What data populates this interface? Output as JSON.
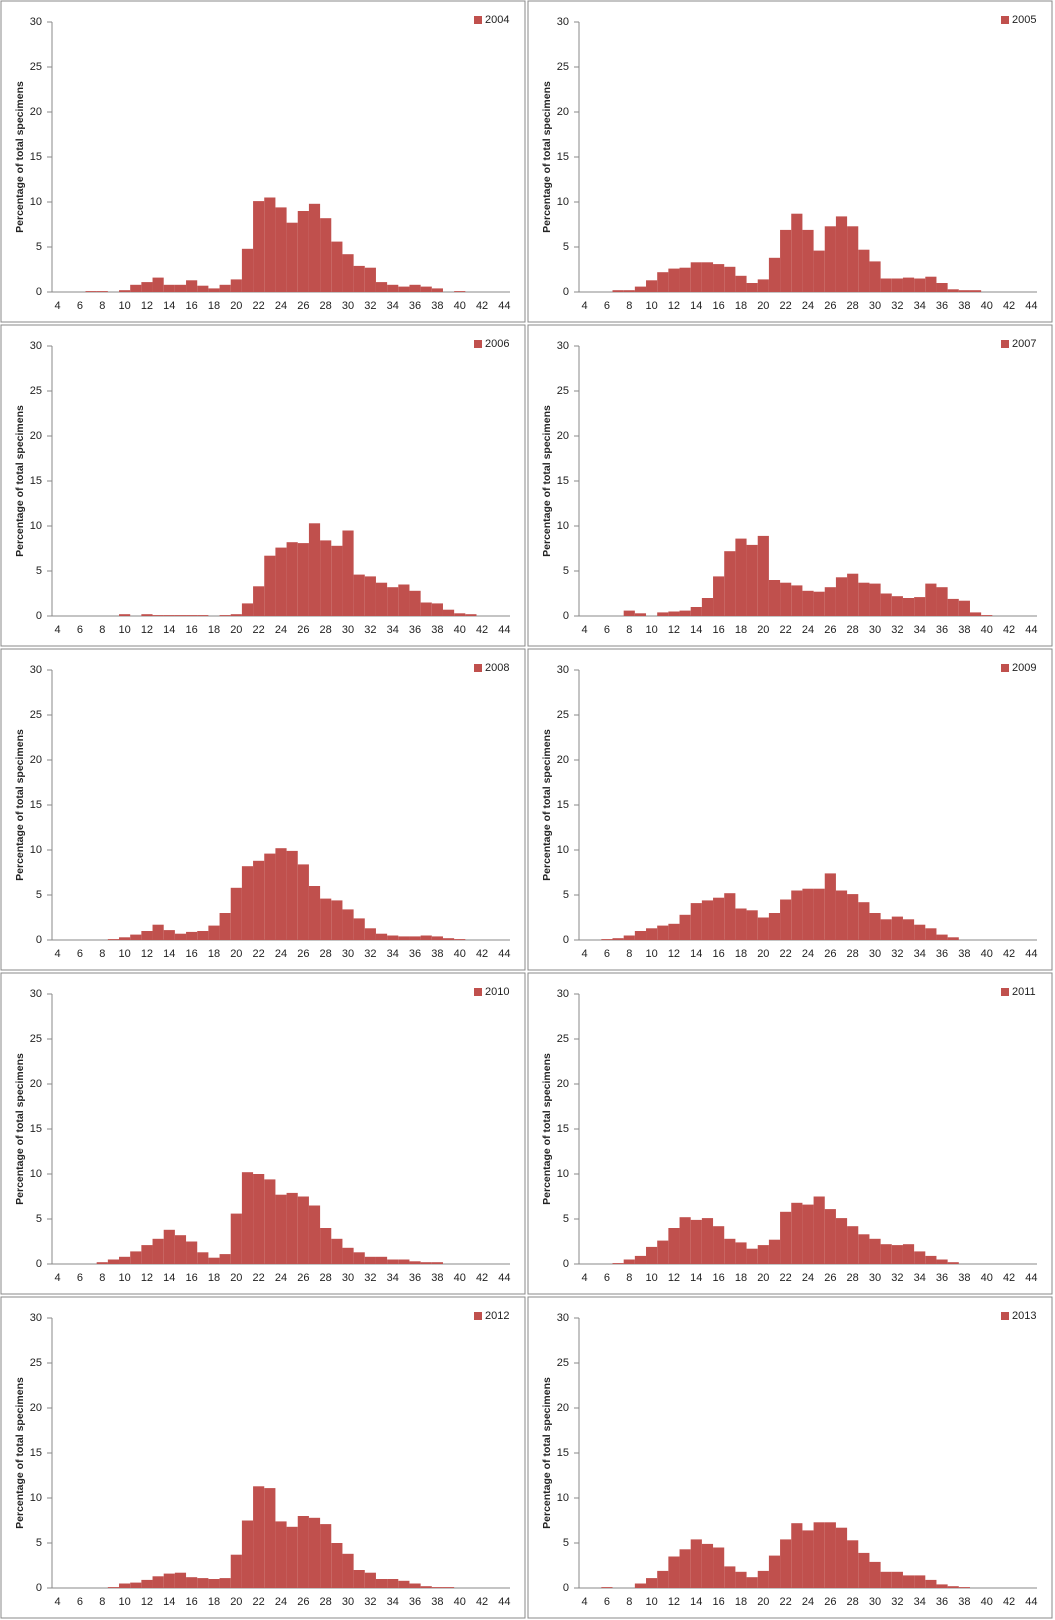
{
  "chart_data": [
    {
      "type": "bar",
      "ylabel": "Percentage of total specimens",
      "ylim": [
        0,
        30
      ],
      "yticks": [
        0,
        5,
        10,
        15,
        20,
        25,
        30
      ],
      "legend": "top-right",
      "categories": [
        "4",
        null,
        "6",
        null,
        "8",
        null,
        "10",
        null,
        "12",
        null,
        "14",
        null,
        "16",
        null,
        "18",
        null,
        "20",
        null,
        "22",
        null,
        "24",
        null,
        "26",
        null,
        "28",
        null,
        "30",
        null,
        "32",
        null,
        "34",
        null,
        "36",
        null,
        "38",
        null,
        "40",
        null,
        "42",
        null,
        "44"
      ],
      "series": [
        {
          "name": "2004",
          "color": "#c0504d",
          "values": [
            0,
            0,
            0,
            0.1,
            0.1,
            0,
            0.2,
            0.8,
            1.1,
            1.6,
            0.8,
            0.8,
            1.3,
            0.7,
            0.4,
            0.8,
            1.4,
            4.8,
            10.1,
            10.5,
            9.4,
            7.7,
            9,
            9.8,
            8.2,
            5.6,
            4.2,
            2.9,
            2.7,
            1.1,
            0.8,
            0.6,
            0.8,
            0.6,
            0.4,
            0,
            0.1,
            0,
            0,
            0,
            0
          ]
        }
      ]
    },
    {
      "type": "bar",
      "ylabel": "Percentage of total specimens",
      "ylim": [
        0,
        30
      ],
      "yticks": [
        0,
        5,
        10,
        15,
        20,
        25,
        30
      ],
      "legend": "top-right",
      "categories": [
        "4",
        null,
        "6",
        null,
        "8",
        null,
        "10",
        null,
        "12",
        null,
        "14",
        null,
        "16",
        null,
        "18",
        null,
        "20",
        null,
        "22",
        null,
        "24",
        null,
        "26",
        null,
        "28",
        null,
        "30",
        null,
        "32",
        null,
        "34",
        null,
        "36",
        null,
        "38",
        null,
        "40",
        null,
        "42",
        null,
        "44"
      ],
      "series": [
        {
          "name": "2005",
          "color": "#c0504d",
          "values": [
            0,
            0,
            0,
            0.2,
            0.2,
            0.6,
            1.3,
            2.2,
            2.6,
            2.7,
            3.3,
            3.3,
            3.1,
            2.8,
            1.8,
            1,
            1.4,
            3.8,
            6.9,
            8.7,
            6.9,
            4.6,
            7.3,
            8.4,
            7.3,
            4.7,
            3.4,
            1.5,
            1.5,
            1.6,
            1.5,
            1.7,
            1,
            0.3,
            0.2,
            0.2,
            0,
            0,
            0,
            0,
            0
          ]
        }
      ]
    },
    {
      "type": "bar",
      "ylabel": "Percentage of total specimens",
      "ylim": [
        0,
        30
      ],
      "yticks": [
        0,
        5,
        10,
        15,
        20,
        25,
        30
      ],
      "legend": "top-right",
      "categories": [
        "4",
        null,
        "6",
        null,
        "8",
        null,
        "10",
        null,
        "12",
        null,
        "14",
        null,
        "16",
        null,
        "18",
        null,
        "20",
        null,
        "22",
        null,
        "24",
        null,
        "26",
        null,
        "28",
        null,
        "30",
        null,
        "32",
        null,
        "34",
        null,
        "36",
        null,
        "38",
        null,
        "40",
        null,
        "42",
        null,
        "44"
      ],
      "series": [
        {
          "name": "2006",
          "color": "#c0504d",
          "values": [
            0,
            0,
            0,
            0,
            0,
            0,
            0.2,
            0,
            0.2,
            0.1,
            0.1,
            0.1,
            0.1,
            0.1,
            0,
            0.1,
            0.2,
            1.4,
            3.3,
            6.7,
            7.6,
            8.2,
            8.1,
            10.3,
            8.4,
            7.8,
            9.5,
            4.6,
            4.4,
            3.7,
            3.2,
            3.5,
            2.8,
            1.5,
            1.4,
            0.7,
            0.3,
            0.2,
            0,
            0,
            0
          ]
        }
      ]
    },
    {
      "type": "bar",
      "ylabel": "Percentage of total specimens",
      "ylim": [
        0,
        30
      ],
      "yticks": [
        0,
        5,
        10,
        15,
        20,
        25,
        30
      ],
      "legend": "top-right",
      "categories": [
        "4",
        null,
        "6",
        null,
        "8",
        null,
        "10",
        null,
        "12",
        null,
        "14",
        null,
        "16",
        null,
        "18",
        null,
        "20",
        null,
        "22",
        null,
        "24",
        null,
        "26",
        null,
        "28",
        null,
        "30",
        null,
        "32",
        null,
        "34",
        null,
        "36",
        null,
        "38",
        null,
        "40",
        null,
        "42",
        null,
        "44"
      ],
      "series": [
        {
          "name": "2007",
          "color": "#c0504d",
          "values": [
            0,
            0,
            0,
            0,
            0.6,
            0.3,
            0,
            0.4,
            0.5,
            0.6,
            1,
            2,
            4.4,
            7.2,
            8.6,
            7.9,
            8.9,
            4,
            3.7,
            3.4,
            2.8,
            2.7,
            3.2,
            4.3,
            4.7,
            3.7,
            3.6,
            2.5,
            2.2,
            2,
            2.1,
            3.6,
            3.2,
            1.9,
            1.7,
            0.4,
            0.1,
            0,
            0,
            0,
            0
          ]
        }
      ]
    },
    {
      "type": "bar",
      "ylabel": "Percentage of total specimens",
      "ylim": [
        0,
        30
      ],
      "yticks": [
        0,
        5,
        10,
        15,
        20,
        25,
        30
      ],
      "legend": "top-right",
      "categories": [
        "4",
        null,
        "6",
        null,
        "8",
        null,
        "10",
        null,
        "12",
        null,
        "14",
        null,
        "16",
        null,
        "18",
        null,
        "20",
        null,
        "22",
        null,
        "24",
        null,
        "26",
        null,
        "28",
        null,
        "30",
        null,
        "32",
        null,
        "34",
        null,
        "36",
        null,
        "38",
        null,
        "40",
        null,
        "42",
        null,
        "44"
      ],
      "series": [
        {
          "name": "2008",
          "color": "#c0504d",
          "values": [
            0,
            0,
            0,
            0,
            0,
            0.1,
            0.3,
            0.6,
            1,
            1.7,
            1.1,
            0.7,
            0.9,
            1,
            1.6,
            3,
            5.8,
            8.2,
            8.8,
            9.6,
            10.2,
            9.9,
            8.4,
            6,
            4.6,
            4.4,
            3.4,
            2.4,
            1.3,
            0.7,
            0.5,
            0.4,
            0.4,
            0.5,
            0.4,
            0.2,
            0.1,
            0,
            0,
            0,
            0
          ]
        }
      ]
    },
    {
      "type": "bar",
      "ylabel": "Percentage of total specimens",
      "ylim": [
        0,
        30
      ],
      "yticks": [
        0,
        5,
        10,
        15,
        20,
        25,
        30
      ],
      "legend": "top-right",
      "categories": [
        "4",
        null,
        "6",
        null,
        "8",
        null,
        "10",
        null,
        "12",
        null,
        "14",
        null,
        "16",
        null,
        "18",
        null,
        "20",
        null,
        "22",
        null,
        "24",
        null,
        "26",
        null,
        "28",
        null,
        "30",
        null,
        "32",
        null,
        "34",
        null,
        "36",
        null,
        "38",
        null,
        "40",
        null,
        "42",
        null,
        "44"
      ],
      "series": [
        {
          "name": "2009",
          "color": "#c0504d",
          "values": [
            0,
            0,
            0.1,
            0.2,
            0.5,
            1,
            1.3,
            1.6,
            1.8,
            2.8,
            4.1,
            4.4,
            4.7,
            5.2,
            3.5,
            3.3,
            2.5,
            3,
            4.5,
            5.5,
            5.7,
            5.7,
            7.4,
            5.5,
            5.1,
            4.2,
            3,
            2.3,
            2.6,
            2.3,
            1.7,
            1.3,
            0.6,
            0.3,
            0,
            0,
            0,
            0,
            0,
            0,
            0
          ]
        }
      ]
    },
    {
      "type": "bar",
      "ylabel": "Percentage of total specimens",
      "ylim": [
        0,
        30
      ],
      "yticks": [
        0,
        5,
        10,
        15,
        20,
        25,
        30
      ],
      "legend": "top-right",
      "categories": [
        "4",
        null,
        "6",
        null,
        "8",
        null,
        "10",
        null,
        "12",
        null,
        "14",
        null,
        "16",
        null,
        "18",
        null,
        "20",
        null,
        "22",
        null,
        "24",
        null,
        "26",
        null,
        "28",
        null,
        "30",
        null,
        "32",
        null,
        "34",
        null,
        "36",
        null,
        "38",
        null,
        "40",
        null,
        "42",
        null,
        "44"
      ],
      "series": [
        {
          "name": "2010",
          "color": "#c0504d",
          "values": [
            0,
            0,
            0,
            0,
            0.2,
            0.5,
            0.8,
            1.4,
            2.1,
            2.8,
            3.8,
            3.2,
            2.5,
            1.3,
            0.7,
            1.1,
            5.6,
            10.2,
            10,
            9.4,
            7.7,
            7.9,
            7.5,
            6.5,
            4,
            2.8,
            1.8,
            1.3,
            0.8,
            0.8,
            0.5,
            0.5,
            0.3,
            0.2,
            0.2,
            0,
            0,
            0,
            0,
            0,
            0
          ]
        }
      ]
    },
    {
      "type": "bar",
      "ylabel": "Percentage of total specimens",
      "ylim": [
        0,
        30
      ],
      "yticks": [
        0,
        5,
        10,
        15,
        20,
        25,
        30
      ],
      "legend": "top-right",
      "categories": [
        "4",
        null,
        "6",
        null,
        "8",
        null,
        "10",
        null,
        "12",
        null,
        "14",
        null,
        "16",
        null,
        "18",
        null,
        "20",
        null,
        "22",
        null,
        "24",
        null,
        "26",
        null,
        "28",
        null,
        "30",
        null,
        "32",
        null,
        "34",
        null,
        "36",
        null,
        "38",
        null,
        "40",
        null,
        "42",
        null,
        "44"
      ],
      "series": [
        {
          "name": "2011",
          "color": "#c0504d",
          "values": [
            0,
            0,
            0,
            0.1,
            0.5,
            0.9,
            1.9,
            2.6,
            4,
            5.2,
            4.9,
            5.1,
            4.2,
            2.8,
            2.4,
            1.7,
            2.1,
            2.7,
            5.8,
            6.8,
            6.6,
            7.5,
            6.1,
            5.1,
            4.2,
            3.3,
            2.8,
            2.2,
            2.1,
            2.2,
            1.4,
            0.9,
            0.5,
            0.2,
            0,
            0,
            0,
            0,
            0,
            0,
            0
          ]
        }
      ]
    },
    {
      "type": "bar",
      "ylabel": "Percentage of total specimens",
      "ylim": [
        0,
        30
      ],
      "yticks": [
        0,
        5,
        10,
        15,
        20,
        25,
        30
      ],
      "legend": "top-right",
      "categories": [
        "4",
        null,
        "6",
        null,
        "8",
        null,
        "10",
        null,
        "12",
        null,
        "14",
        null,
        "16",
        null,
        "18",
        null,
        "20",
        null,
        "22",
        null,
        "24",
        null,
        "26",
        null,
        "28",
        null,
        "30",
        null,
        "32",
        null,
        "34",
        null,
        "36",
        null,
        "38",
        null,
        "40",
        null,
        "42",
        null,
        "44"
      ],
      "series": [
        {
          "name": "2012",
          "color": "#c0504d",
          "values": [
            0,
            0,
            0,
            0,
            0,
            0.1,
            0.5,
            0.6,
            0.9,
            1.3,
            1.6,
            1.7,
            1.2,
            1.1,
            1,
            1.1,
            3.7,
            7.5,
            11.3,
            11.1,
            7.4,
            6.8,
            8,
            7.8,
            7.1,
            5,
            3.8,
            2,
            1.7,
            1,
            1,
            0.8,
            0.5,
            0.2,
            0.1,
            0.1,
            0,
            0,
            0,
            0,
            0
          ]
        }
      ]
    },
    {
      "type": "bar",
      "ylabel": "Percentage of total specimens",
      "ylim": [
        0,
        30
      ],
      "yticks": [
        0,
        5,
        10,
        15,
        20,
        25,
        30
      ],
      "legend": "top-right",
      "categories": [
        "4",
        null,
        "6",
        null,
        "8",
        null,
        "10",
        null,
        "12",
        null,
        "14",
        null,
        "16",
        null,
        "18",
        null,
        "20",
        null,
        "22",
        null,
        "24",
        null,
        "26",
        null,
        "28",
        null,
        "30",
        null,
        "32",
        null,
        "34",
        null,
        "36",
        null,
        "38",
        null,
        "40",
        null,
        "42",
        null,
        "44"
      ],
      "series": [
        {
          "name": "2013",
          "color": "#c0504d",
          "values": [
            0,
            0,
            0.1,
            0,
            0,
            0.5,
            1.1,
            1.9,
            3.5,
            4.3,
            5.4,
            4.9,
            4.5,
            2.4,
            1.8,
            1.2,
            1.9,
            3.6,
            5.4,
            7.2,
            6.4,
            7.3,
            7.3,
            6.7,
            5.3,
            3.9,
            2.9,
            1.8,
            1.8,
            1.4,
            1.4,
            0.9,
            0.4,
            0.2,
            0.1,
            0,
            0,
            0,
            0,
            0,
            0
          ]
        }
      ]
    }
  ]
}
